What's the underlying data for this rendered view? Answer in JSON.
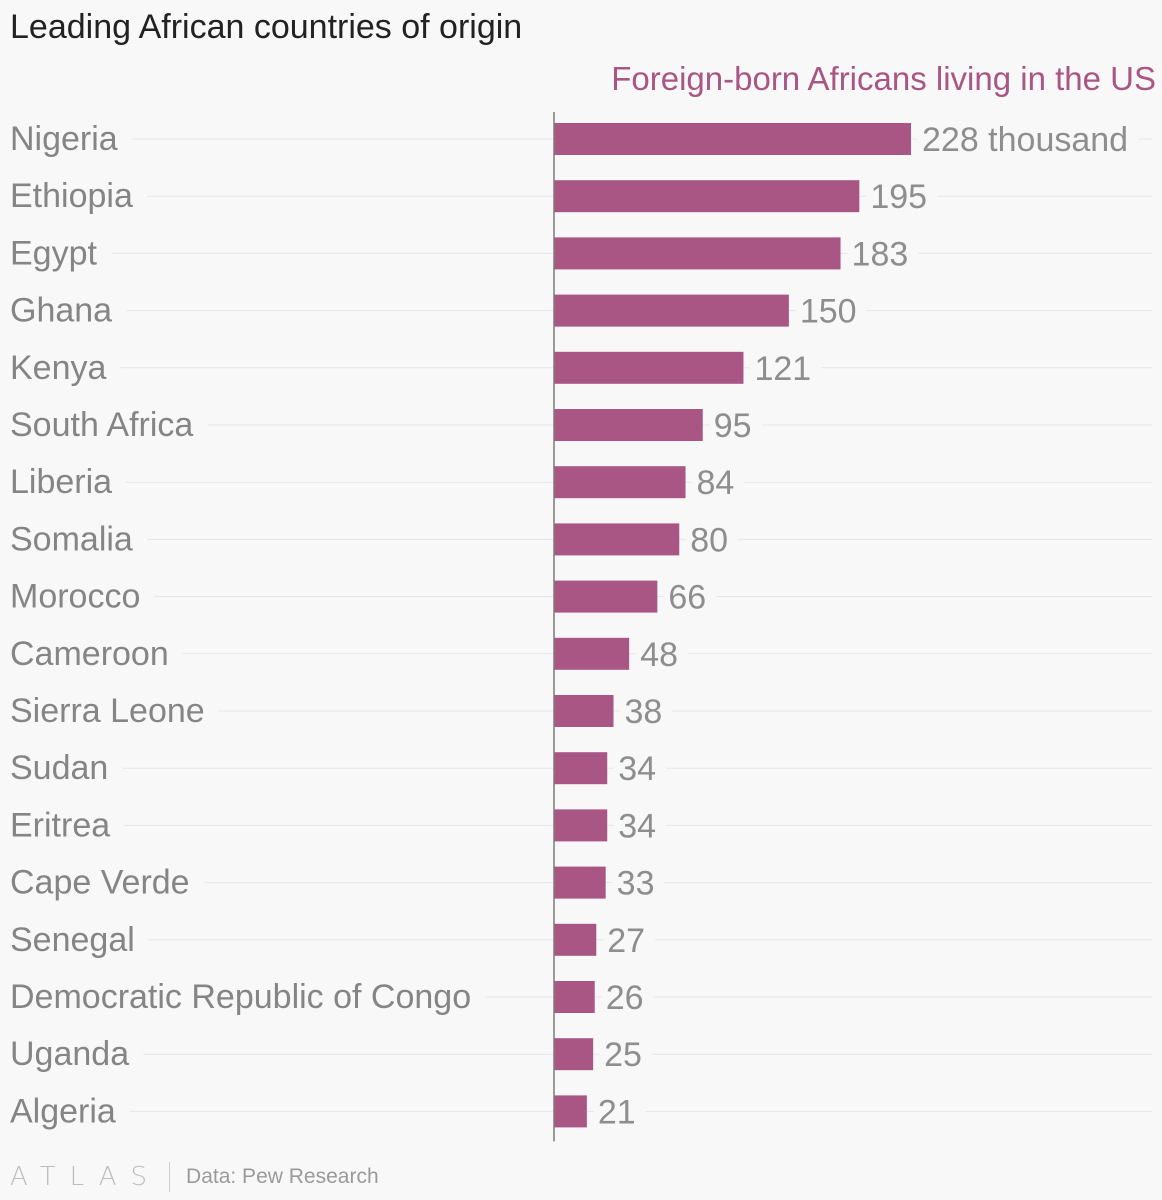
{
  "chart_data": {
    "type": "bar",
    "orientation": "horizontal",
    "title": "Leading African countries of origin",
    "series": [
      {
        "name": "Foreign-born Africans living in the US",
        "color": "#a95685",
        "values": [
          228,
          195,
          183,
          150,
          121,
          95,
          84,
          80,
          66,
          48,
          38,
          34,
          34,
          33,
          27,
          26,
          25,
          21
        ]
      }
    ],
    "categories": [
      "Nigeria",
      "Ethiopia",
      "Egypt",
      "Ghana",
      "Kenya",
      "South Africa",
      "Liberia",
      "Somalia",
      "Morocco",
      "Cameroon",
      "Sierra Leone",
      "Sudan",
      "Eritrea",
      "Cape Verde",
      "Senegal",
      "Democratic Republic of Congo",
      "Uganda",
      "Algeria"
    ],
    "value_labels": [
      "228 thousand",
      "195",
      "183",
      "150",
      "121",
      "95",
      "84",
      "80",
      "66",
      "48",
      "38",
      "34",
      "34",
      "33",
      "27",
      "26",
      "25",
      "21"
    ],
    "xlim": [
      0,
      228
    ],
    "grid": true,
    "legend_position": "top-right"
  },
  "footer": {
    "brand": "ATLAS",
    "source": "Data: Pew Research"
  },
  "colors": {
    "bar": "#a95685",
    "legend_text": "#a95685",
    "category_text": "#858585",
    "value_text": "#8e8e8e",
    "gridline": "#e6e6e6",
    "axis": "#7a7a7a",
    "title_text": "#222222"
  }
}
